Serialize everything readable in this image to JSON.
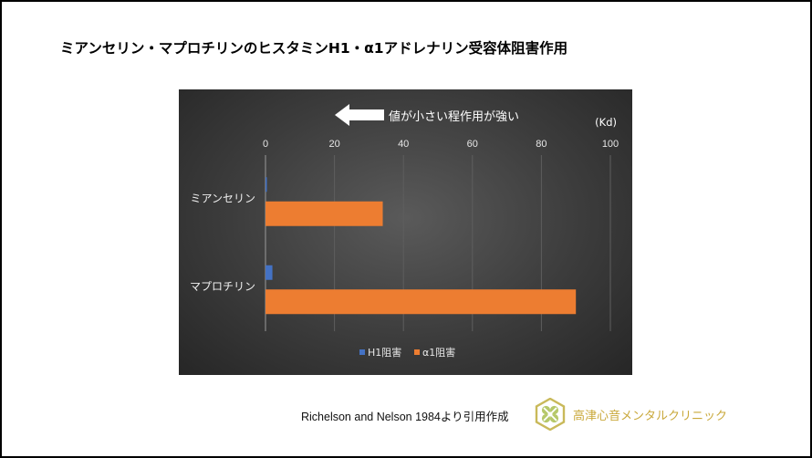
{
  "page": {
    "title": "ミアンセリン・マプロチリンのヒスタミンH1・α1アドレナリン受容体阻害作用",
    "credit": "Richelson and Nelson 1984より引用作成",
    "clinic_name": "高津心音メンタルクリニック",
    "logo_icon": "clover-hexagon-logo",
    "logo_color": "#c9b95a",
    "logo_text_color": "#c9a83a"
  },
  "chart_data": {
    "type": "bar",
    "orientation": "horizontal",
    "annotation": "値が小さい程作用が強い",
    "annotation_icon": "left-arrow-icon",
    "unit_label": "(Kd)",
    "categories": [
      "ミアンセリン",
      "マプロチリン"
    ],
    "series": [
      {
        "name": "H1阻害",
        "values": [
          0.4,
          2
        ],
        "color": "#4472c4"
      },
      {
        "name": "α1阻害",
        "values": [
          34,
          90
        ],
        "color": "#ed7d31"
      }
    ],
    "xlim": [
      0,
      100
    ],
    "x_ticks": [
      0,
      20,
      40,
      60,
      80,
      100
    ],
    "tick_labels": [
      "0",
      "20",
      "40",
      "60",
      "80",
      "100"
    ],
    "axis_position": "top",
    "grid": true,
    "legend_position": "bottom",
    "background": "dark-gradient"
  }
}
